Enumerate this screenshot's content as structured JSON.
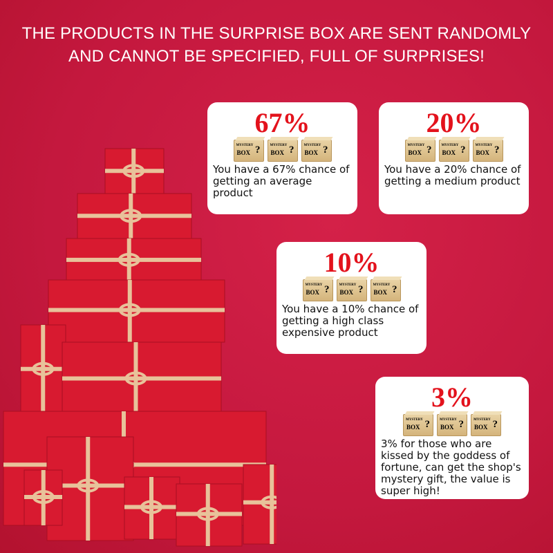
{
  "headline": {
    "line1": "THE PRODUCTS IN THE SURPRISE BOX ARE SENT RANDOMLY",
    "line2": "AND CANNOT BE SPECIFIED, FULL OF SURPRISES!"
  },
  "box_label": {
    "top": "MYSTERY",
    "bottom": "BOX",
    "mark": "?"
  },
  "cards": [
    {
      "percent": "67%",
      "description": "You have a 67% chance of getting an average product"
    },
    {
      "percent": "20%",
      "description": "You have a 20% chance of getting a medium product"
    },
    {
      "percent": "10%",
      "description": "You have a 10% chance of getting a high class expensive product"
    },
    {
      "percent": "3%",
      "description": "3% for those who are kissed by the goddess of fortune, can get the shop's mystery gift, the value is super high!"
    }
  ],
  "colors": {
    "background": "#c8193f",
    "percent": "#e3121c",
    "ribbon": "#e8c29a",
    "gift": "#d81a30"
  }
}
